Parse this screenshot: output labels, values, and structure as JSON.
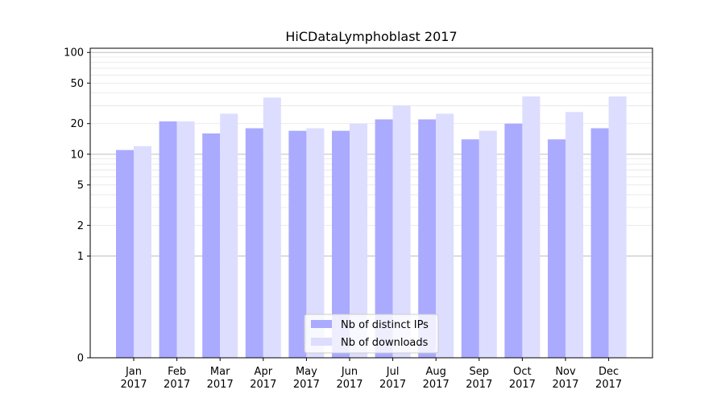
{
  "chart_data": {
    "type": "bar",
    "title": "HiCDataLymphoblast 2017",
    "xlabel": "",
    "ylabel": "",
    "yscale": "symlog",
    "ylim": [
      0,
      110
    ],
    "yticks": [
      0,
      1,
      2,
      5,
      10,
      20,
      50,
      100
    ],
    "ytick_labels": [
      "0",
      "1",
      "2",
      "5",
      "10",
      "20",
      "50",
      "100"
    ],
    "categories": [
      "Jan\n2017",
      "Feb\n2017",
      "Mar\n2017",
      "Apr\n2017",
      "May\n2017",
      "Jun\n2017",
      "Jul\n2017",
      "Aug\n2017",
      "Sep\n2017",
      "Oct\n2017",
      "Nov\n2017",
      "Dec\n2017"
    ],
    "grid": true,
    "legend_position": "lower center",
    "series": [
      {
        "name": "Nb of distinct IPs",
        "color": "#aaaaff",
        "values": [
          11,
          21,
          16,
          18,
          17,
          17,
          22,
          22,
          14,
          20,
          14,
          18
        ]
      },
      {
        "name": "Nb of downloads",
        "color": "#ddddff",
        "values": [
          12,
          21,
          25,
          36,
          18,
          20,
          30,
          25,
          17,
          37,
          26,
          37
        ]
      }
    ]
  }
}
